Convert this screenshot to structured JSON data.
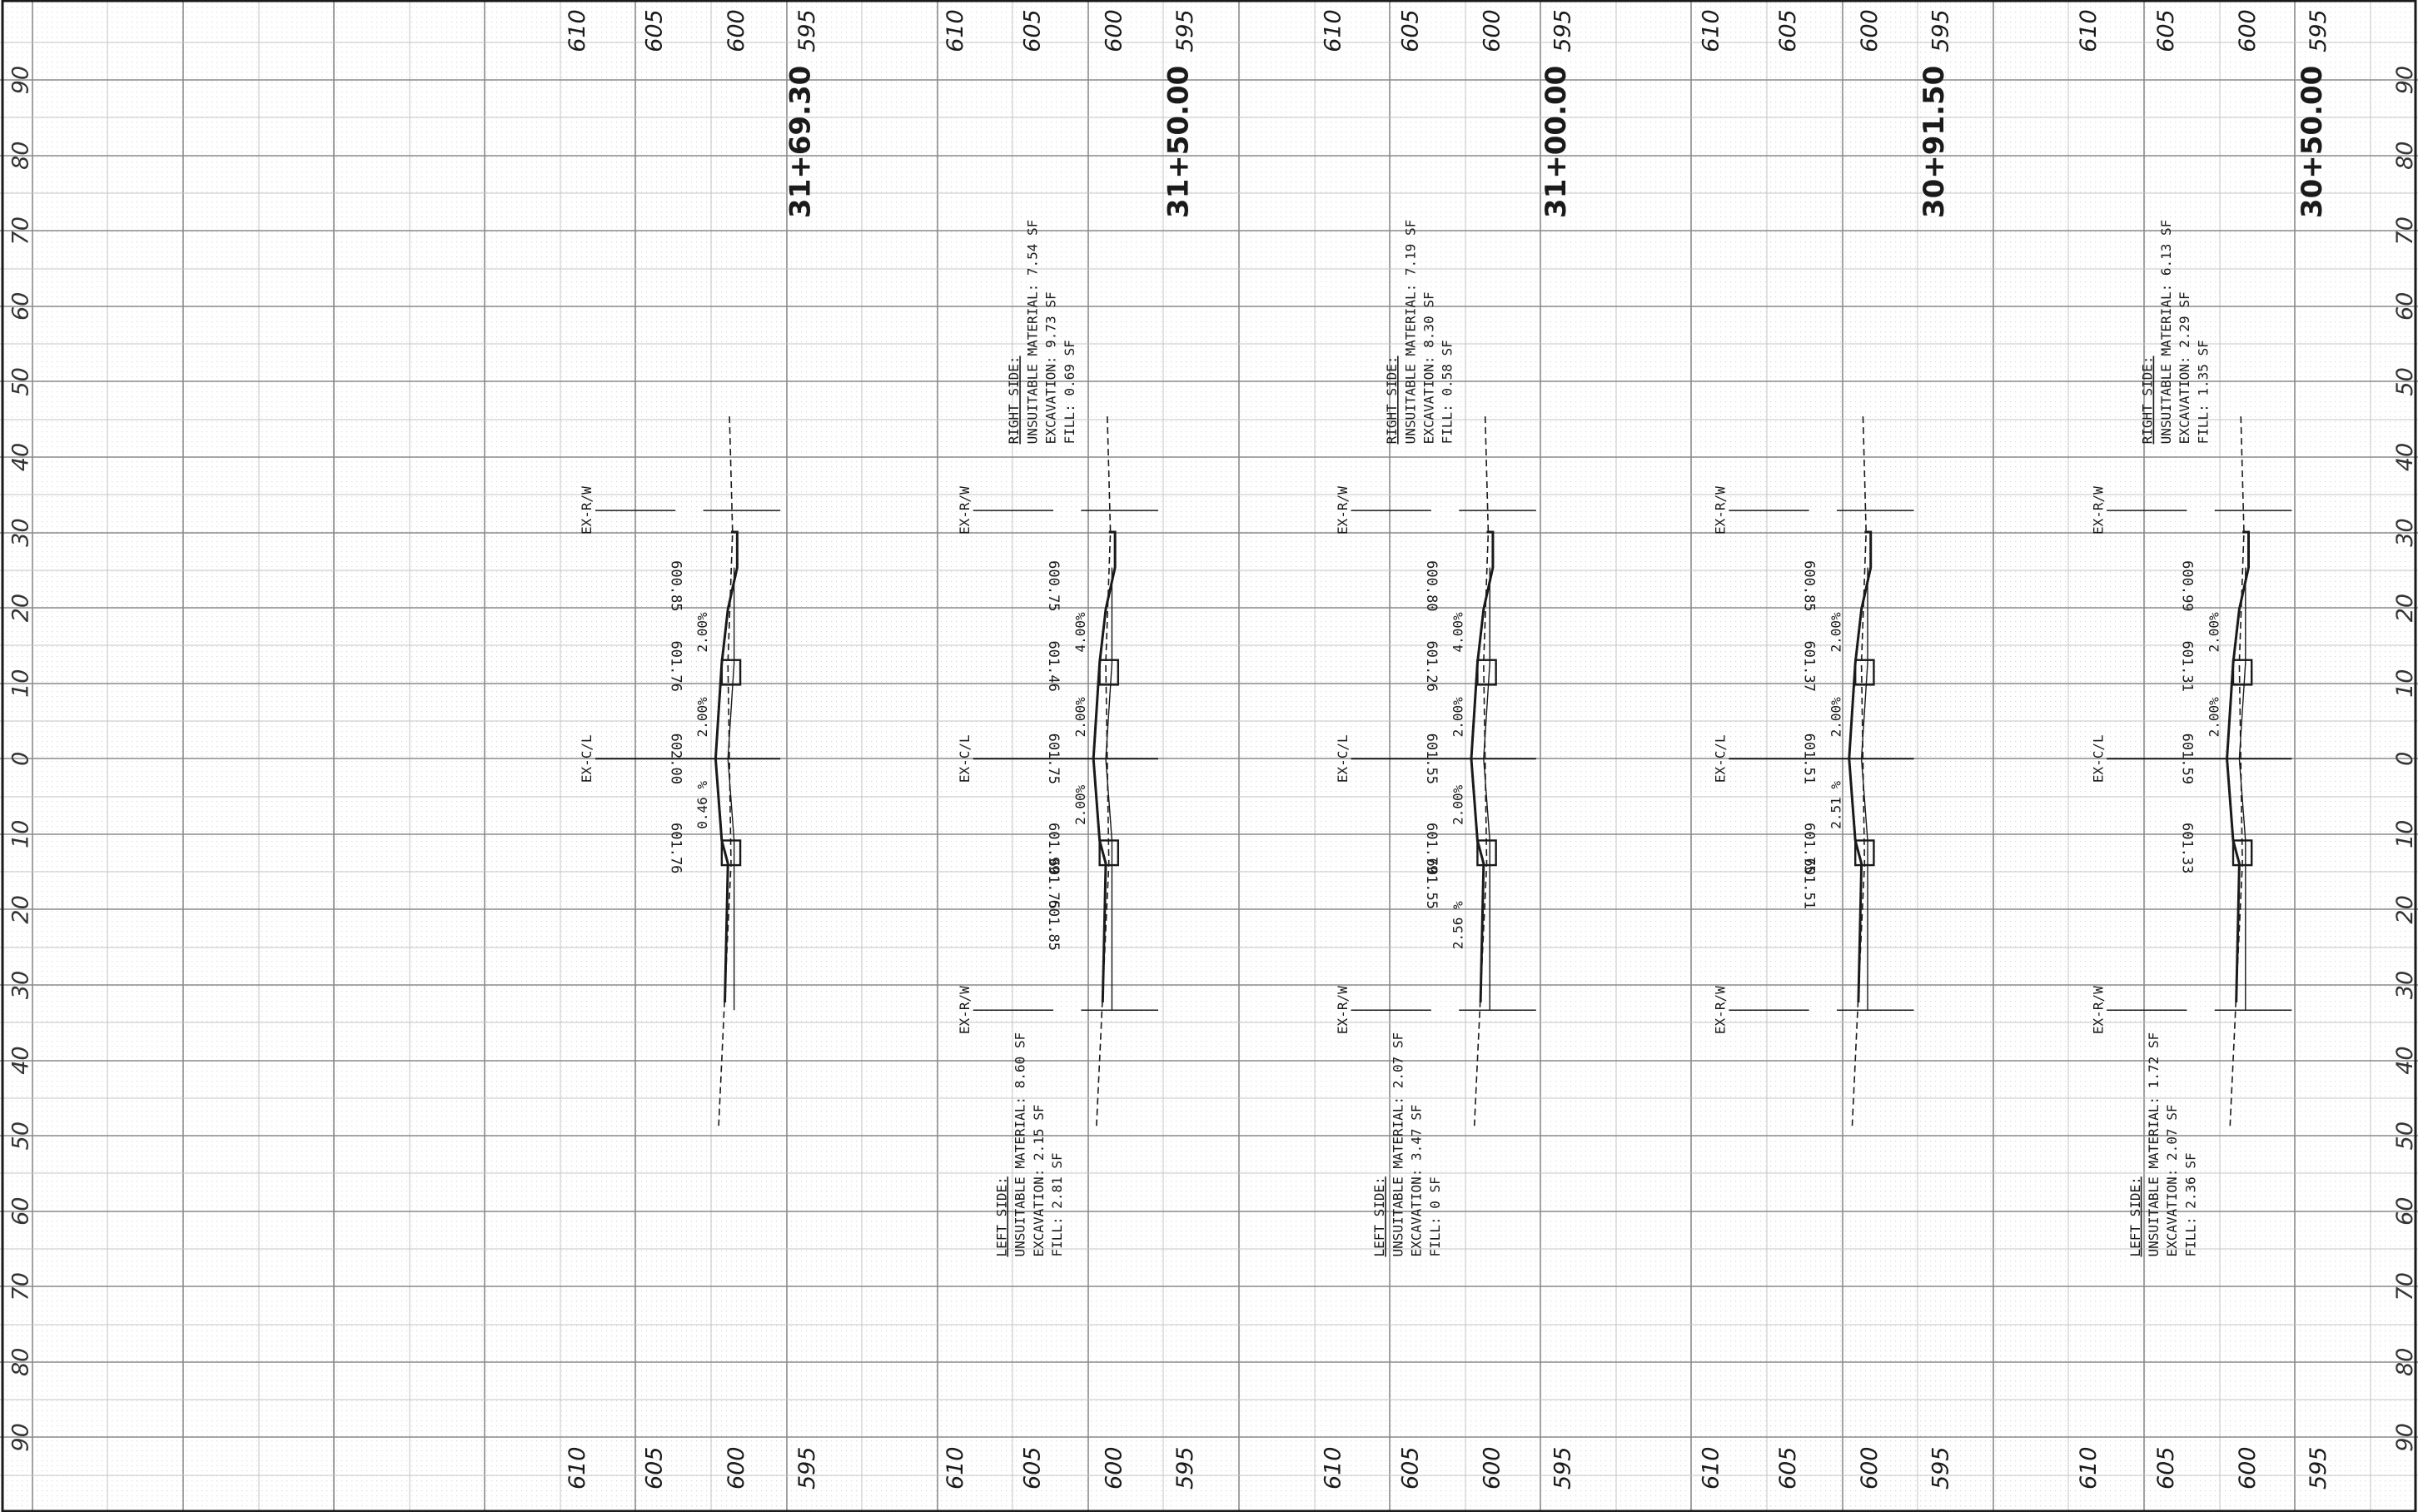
{
  "grid": {
    "offset_labels": [
      "90",
      "80",
      "70",
      "60",
      "50",
      "40",
      "30",
      "20",
      "10",
      "0",
      "10",
      "20",
      "30",
      "40",
      "50",
      "60",
      "70",
      "80",
      "90"
    ],
    "elev_labels": [
      "610",
      "605",
      "600",
      "595"
    ],
    "colors": {
      "major": "#8a8a8a",
      "minor": "#c4c4c4",
      "ink": "#1a1a1a",
      "dot": "#b3b3b3"
    }
  },
  "sections": [
    {
      "station": "31+69.30",
      "ex_rw_top": "EX-R/W",
      "ex_cl": "EX-C/L",
      "ex_rw_bottom": "",
      "elevations": [
        "600.85",
        "601.76",
        "602.00",
        "601.76"
      ],
      "slopes": [
        "2.00%",
        "2.00%",
        "0.46 %"
      ],
      "left_side": null,
      "right_side": null
    },
    {
      "station": "31+50.00",
      "ex_rw_top": "EX-R/W",
      "ex_cl": "EX-C/L",
      "ex_rw_bottom": "EX-R/W",
      "elevations": [
        "600.75",
        "601.46",
        "601.75",
        "601.99",
        "601.75",
        "601.85"
      ],
      "slopes": [
        "4.00%",
        "2.00%",
        "2.00%"
      ],
      "left_side": {
        "title": "LEFT SIDE:",
        "lines": [
          "UNSUITABLE MATERIAL: 8.60 SF",
          "EXCAVATION: 2.15 SF",
          "FILL: 2.81 SF"
        ]
      },
      "right_side": {
        "title": "RIGHT SIDE:",
        "lines": [
          "UNSUITABLE MATERIAL: 7.54 SF",
          "EXCAVATION: 9.73 SF",
          "FILL: 0.69 SF"
        ]
      }
    },
    {
      "station": "31+00.00",
      "ex_rw_top": "EX-R/W",
      "ex_cl": "EX-C/L",
      "ex_rw_bottom": "EX-R/W",
      "elevations": [
        "600.80",
        "601.26",
        "601.55",
        "601.79",
        "601.55"
      ],
      "slopes": [
        "4.00%",
        "2.00%",
        "2.00%",
        "2.56 %"
      ],
      "left_side": {
        "title": "LEFT SIDE:",
        "lines": [
          "UNSUITABLE MATERIAL: 2.07 SF",
          "EXCAVATION: 3.47 SF",
          "FILL: 0 SF"
        ]
      },
      "right_side": {
        "title": "RIGHT SIDE:",
        "lines": [
          "UNSUITABLE MATERIAL: 7.19 SF",
          "EXCAVATION: 8.30 SF",
          "FILL: 0.58 SF"
        ]
      }
    },
    {
      "station": "30+91.50",
      "ex_rw_top": "EX-R/W",
      "ex_cl": "EX-C/L",
      "ex_rw_bottom": "EX-R/W",
      "elevations": [
        "600.85",
        "601.37",
        "601.51",
        "601.75",
        "601.51"
      ],
      "slopes": [
        "2.00%",
        "2.00%",
        "2.51 %"
      ],
      "left_side": null,
      "right_side": null
    },
    {
      "station": "30+50.00",
      "ex_rw_top": "EX-R/W",
      "ex_cl": "EX-C/L",
      "ex_rw_bottom": "EX-R/W",
      "elevations": [
        "600.99",
        "601.31",
        "601.59",
        "601.33"
      ],
      "slopes": [
        "2.00%",
        "2.00%"
      ],
      "left_side": {
        "title": "LEFT SIDE:",
        "lines": [
          "UNSUITABLE MATERIAL: 1.72 SF",
          "EXCAVATION: 2.07 SF",
          "FILL: 2.36 SF"
        ]
      },
      "right_side": {
        "title": "RIGHT SIDE:",
        "lines": [
          "UNSUITABLE MATERIAL: 6.13 SF",
          "EXCAVATION: 2.29 SF",
          "FILL: 1.35 SF"
        ]
      }
    }
  ]
}
